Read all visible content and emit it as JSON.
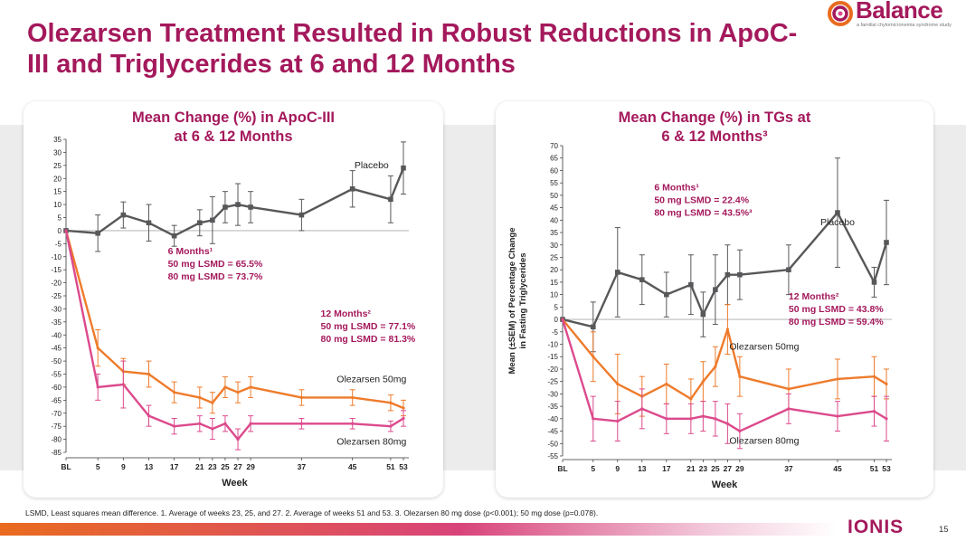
{
  "slide": {
    "title": "Olezarsen Treatment Resulted in Robust Reductions in ApoC-III and Triglycerides at 6 and 12 Months",
    "footnote": "LSMD, Least squares mean difference. 1. Average of weeks 23, 25, and 27. 2. Average of weeks 51 and 53. 3. Olezarsen 80 mg dose (p<0.001); 50 mg dose (p=0.078).",
    "page_number": "15",
    "brand_footer": "IONIS"
  },
  "logo": {
    "word": "Balance",
    "tagline": "a familial chylomicronemia syndrome study"
  },
  "colors": {
    "title": "#a4195c",
    "placebo": "#58585a",
    "olez50": "#ee7b2c",
    "olez80": "#dc4a8c",
    "annotation": "#a4195c"
  },
  "chart_data": [
    {
      "type": "line",
      "title": "Mean Change (%) in ApoC-III at 6 & 12 Months",
      "title_lines": [
        "Mean Change (%) in ApoC-III",
        "at 6 & 12 Months"
      ],
      "xlabel": "Week",
      "ylabel": "",
      "ylim": [
        -85,
        35
      ],
      "yticks": [
        35,
        30,
        25,
        20,
        15,
        10,
        5,
        0,
        -5,
        -10,
        -15,
        -20,
        -25,
        -30,
        -35,
        -40,
        -45,
        -50,
        -55,
        -60,
        -65,
        -70,
        -75,
        -80,
        -85
      ],
      "x_ticks": [
        {
          "w": 0,
          "label": "BL"
        },
        {
          "w": 5,
          "label": "5"
        },
        {
          "w": 9,
          "label": "9"
        },
        {
          "w": 13,
          "label": "13"
        },
        {
          "w": 17,
          "label": "17"
        },
        {
          "w": 21,
          "label": "21"
        },
        {
          "w": 23,
          "label": "23"
        },
        {
          "w": 25,
          "label": "25"
        },
        {
          "w": 27,
          "label": "27"
        },
        {
          "w": 29,
          "label": "29"
        },
        {
          "w": 37,
          "label": "37"
        },
        {
          "w": 45,
          "label": "45"
        },
        {
          "w": 51,
          "label": "51"
        },
        {
          "w": 53,
          "label": "53"
        }
      ],
      "series": [
        {
          "name": "Placebo",
          "color": "#58585a",
          "marker": "square",
          "x": [
            0,
            5,
            9,
            13,
            17,
            21,
            23,
            25,
            27,
            29,
            37,
            45,
            51,
            53
          ],
          "y": [
            0,
            -1,
            6,
            3,
            -2,
            3,
            4,
            9,
            10,
            9,
            6,
            16,
            12,
            24
          ],
          "err": [
            0,
            7,
            5,
            7,
            4,
            5,
            9,
            6,
            8,
            6,
            6,
            7,
            9,
            10
          ]
        },
        {
          "name": "Olezarsen 50mg",
          "color": "#ee7b2c",
          "marker": "none",
          "x": [
            0,
            5,
            9,
            13,
            17,
            21,
            23,
            25,
            27,
            29,
            37,
            45,
            51,
            53
          ],
          "y": [
            0,
            -45,
            -54,
            -55,
            -62,
            -64,
            -66,
            -60,
            -62,
            -60,
            -64,
            -64,
            -66,
            -68
          ],
          "err": [
            0,
            7,
            5,
            5,
            4,
            4,
            4,
            4,
            4,
            4,
            3,
            3,
            3,
            3
          ]
        },
        {
          "name": "Olezarsen 80mg",
          "color": "#dc4a8c",
          "marker": "none",
          "x": [
            0,
            5,
            9,
            13,
            17,
            21,
            23,
            25,
            27,
            29,
            37,
            45,
            51,
            53
          ],
          "y": [
            0,
            -60,
            -59,
            -71,
            -75,
            -74,
            -76,
            -74,
            -80,
            -74,
            -74,
            -74,
            -75,
            -72
          ],
          "err": [
            0,
            5,
            9,
            4,
            3,
            3,
            4,
            3,
            4,
            3,
            2,
            2,
            2,
            3
          ]
        }
      ],
      "series_labels": [
        {
          "text": "Placebo",
          "w": 48,
          "v": 25
        },
        {
          "text": "Olezarsen 50mg",
          "w": 48,
          "v": -57
        },
        {
          "text": "Olezarsen 80mg",
          "w": 48,
          "v": -81
        }
      ],
      "annotations": [
        {
          "lines": [
            "6 Months¹",
            "50 mg LSMD = 65.5%",
            "80 mg LSMD = 73.7%"
          ],
          "w": 16,
          "v": -9
        },
        {
          "lines": [
            "12 Months²",
            "50 mg LSMD = 77.1%",
            "80 mg LSMD = 81.3%"
          ],
          "w": 40,
          "v": -33
        }
      ]
    },
    {
      "type": "line",
      "title": "Mean Change (%) in TGs at 6 & 12 Months³",
      "title_lines": [
        "Mean Change (%) in TGs at",
        "6 & 12 Months³"
      ],
      "xlabel": "Week",
      "ylabel": "Mean (±SEM) of Percentage Change in Fasting Triglycerides",
      "ylabel_lines": [
        "Mean (±SEM) of Percentage Change",
        "in Fasting Triglycerides"
      ],
      "ylim": [
        -55,
        70
      ],
      "yticks": [
        70,
        65,
        60,
        55,
        50,
        45,
        40,
        35,
        30,
        25,
        20,
        15,
        10,
        5,
        0,
        -5,
        -10,
        -15,
        -20,
        -25,
        -30,
        -35,
        -40,
        -45,
        -50,
        -55
      ],
      "x_ticks": [
        {
          "w": 0,
          "label": "BL"
        },
        {
          "w": 5,
          "label": "5"
        },
        {
          "w": 9,
          "label": "9"
        },
        {
          "w": 13,
          "label": "13"
        },
        {
          "w": 17,
          "label": "17"
        },
        {
          "w": 21,
          "label": "21"
        },
        {
          "w": 23,
          "label": "23"
        },
        {
          "w": 25,
          "label": "25"
        },
        {
          "w": 27,
          "label": "27"
        },
        {
          "w": 29,
          "label": "29"
        },
        {
          "w": 37,
          "label": "37"
        },
        {
          "w": 45,
          "label": "45"
        },
        {
          "w": 51,
          "label": "51"
        },
        {
          "w": 53,
          "label": "53"
        }
      ],
      "series": [
        {
          "name": "Placebo",
          "color": "#58585a",
          "marker": "square",
          "x": [
            0,
            5,
            9,
            13,
            17,
            21,
            23,
            25,
            27,
            29,
            37,
            45,
            51,
            53
          ],
          "y": [
            0,
            -3,
            19,
            16,
            10,
            14,
            2,
            12,
            18,
            18,
            20,
            43,
            15,
            31
          ],
          "err": [
            0,
            10,
            18,
            10,
            9,
            12,
            9,
            14,
            12,
            10,
            10,
            22,
            6,
            17
          ]
        },
        {
          "name": "Olezarsen 50mg",
          "color": "#ee7b2c",
          "marker": "none",
          "x": [
            0,
            5,
            9,
            13,
            17,
            21,
            23,
            25,
            27,
            29,
            37,
            45,
            51,
            53
          ],
          "y": [
            0,
            -15,
            -26,
            -31,
            -26,
            -32,
            -25,
            -19,
            -4,
            -23,
            -28,
            -24,
            -23,
            -26
          ],
          "err": [
            0,
            10,
            12,
            8,
            8,
            8,
            8,
            8,
            10,
            8,
            8,
            8,
            8,
            6
          ]
        },
        {
          "name": "Olezarsen 80mg",
          "color": "#dc4a8c",
          "marker": "none",
          "x": [
            0,
            5,
            9,
            13,
            17,
            21,
            23,
            25,
            27,
            29,
            37,
            45,
            51,
            53
          ],
          "y": [
            0,
            -40,
            -41,
            -36,
            -40,
            -40,
            -39,
            -40,
            -42,
            -45,
            -36,
            -39,
            -37,
            -40
          ],
          "err": [
            0,
            9,
            8,
            8,
            6,
            6,
            6,
            7,
            8,
            7,
            6,
            6,
            6,
            9
          ]
        }
      ],
      "series_labels": [
        {
          "text": "Placebo",
          "w": 45,
          "v": 39
        },
        {
          "text": "Olezarsen 50mg",
          "w": 33,
          "v": -11
        },
        {
          "text": "Olezarsen 80mg",
          "w": 33,
          "v": -49
        }
      ],
      "annotations": [
        {
          "lines": [
            "6 Months¹",
            "50 mg LSMD = 22.4%",
            "80 mg LSMD = 43.5%³"
          ],
          "w": 15,
          "v": 52
        },
        {
          "lines": [
            "12 Months²",
            "50 mg LSMD = 43.8%",
            "80 mg LSMD = 59.4%"
          ],
          "w": 37,
          "v": 8
        }
      ]
    }
  ]
}
